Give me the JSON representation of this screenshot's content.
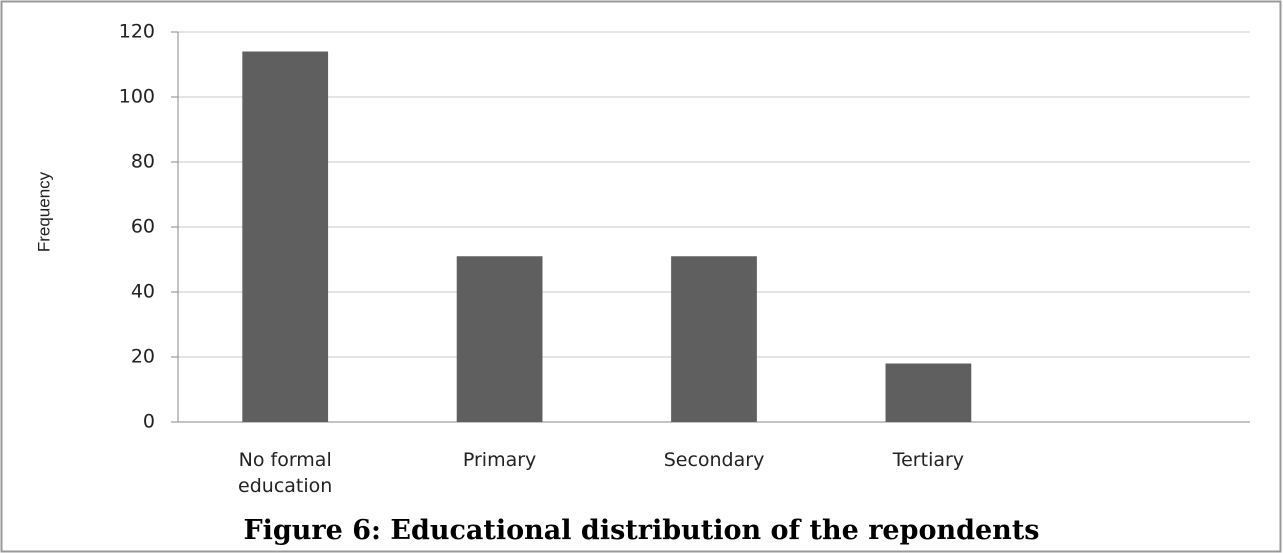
{
  "chart_data": {
    "type": "bar",
    "title": "Figure 6: Educational distribution of the repondents",
    "y_label": "Frequency",
    "categories": [
      "No formal education",
      "Primary",
      "Secondary",
      "Tertiary",
      null
    ],
    "values": [
      114,
      51,
      51,
      18,
      null
    ],
    "color": "#5f5f5f",
    "ylim": [
      0,
      120
    ],
    "yticks": [
      0,
      20,
      40,
      60,
      80,
      100,
      120
    ],
    "grid": true
  }
}
